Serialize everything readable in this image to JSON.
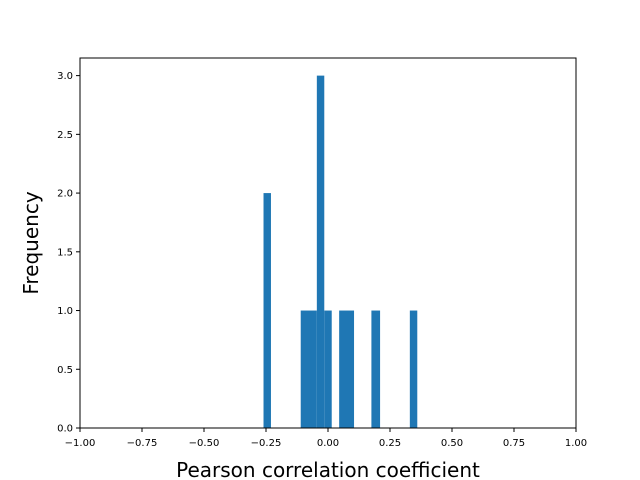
{
  "chart_data": {
    "type": "bar",
    "title": "",
    "xlabel": "Pearson correlation coefficient",
    "ylabel": "Frequency",
    "xlim": [
      -1.0,
      1.0
    ],
    "ylim": [
      0.0,
      3.15
    ],
    "xticks": [
      -1.0,
      -0.75,
      -0.5,
      -0.25,
      0.0,
      0.25,
      0.5,
      0.75,
      1.0
    ],
    "xtick_labels": [
      "−1.00",
      "−0.75",
      "−0.50",
      "−0.25",
      "0.00",
      "0.25",
      "0.50",
      "0.75",
      "1.00"
    ],
    "yticks": [
      0.0,
      0.5,
      1.0,
      1.5,
      2.0,
      2.5,
      3.0
    ],
    "ytick_labels": [
      "0.0",
      "0.5",
      "1.0",
      "1.5",
      "2.0",
      "2.5",
      "3.0"
    ],
    "grid": false,
    "bar_color": "#1f77b4",
    "bins": [
      {
        "x0": -0.26,
        "x1": -0.23,
        "count": 2
      },
      {
        "x0": -0.11,
        "x1": -0.045,
        "count": 1
      },
      {
        "x0": -0.045,
        "x1": -0.015,
        "count": 3
      },
      {
        "x0": -0.015,
        "x1": 0.015,
        "count": 1
      },
      {
        "x0": 0.045,
        "x1": 0.105,
        "count": 1
      },
      {
        "x0": 0.175,
        "x1": 0.21,
        "count": 1
      },
      {
        "x0": 0.33,
        "x1": 0.36,
        "count": 1
      }
    ]
  }
}
